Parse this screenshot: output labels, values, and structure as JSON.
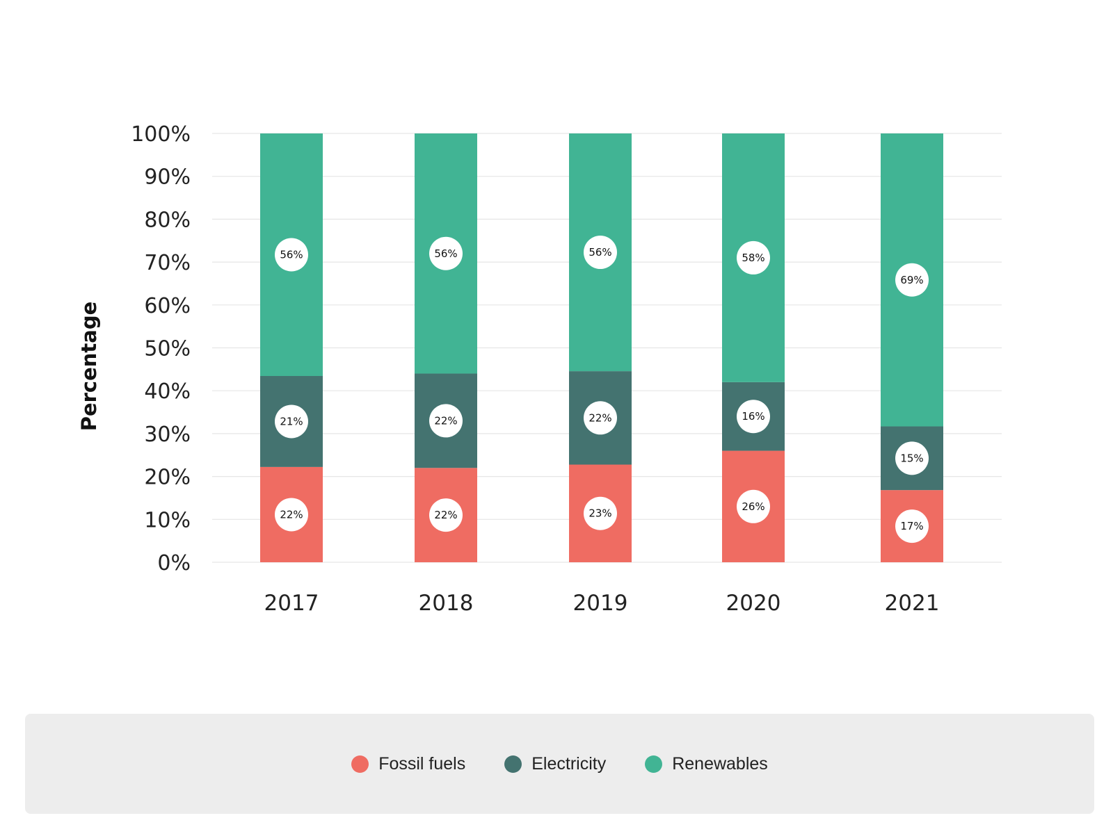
{
  "chart_data": {
    "type": "bar",
    "stacked": true,
    "categories": [
      "2017",
      "2018",
      "2019",
      "2020",
      "2021"
    ],
    "series": [
      {
        "name": "Fossil fuels",
        "color": "#ef6c62",
        "values": [
          22,
          22,
          23,
          26,
          17
        ],
        "labels": [
          "22%",
          "22%",
          "23%",
          "26%",
          "17%"
        ]
      },
      {
        "name": "Electricity",
        "color": "#447370",
        "values": [
          21,
          22,
          22,
          16,
          15
        ],
        "labels": [
          "21%",
          "22%",
          "22%",
          "16%",
          "15%"
        ]
      },
      {
        "name": "Renewables",
        "color": "#41b494",
        "values": [
          56,
          56,
          56,
          58,
          69
        ],
        "labels": [
          "56%",
          "56%",
          "56%",
          "58%",
          "69%"
        ]
      }
    ],
    "ylabel": "Percentage",
    "ylim": [
      0,
      100
    ],
    "yticks": [
      "0%",
      "10%",
      "20%",
      "30%",
      "40%",
      "50%",
      "60%",
      "70%",
      "80%",
      "90%",
      "100%"
    ],
    "grid": true,
    "legend_position": "bottom"
  }
}
